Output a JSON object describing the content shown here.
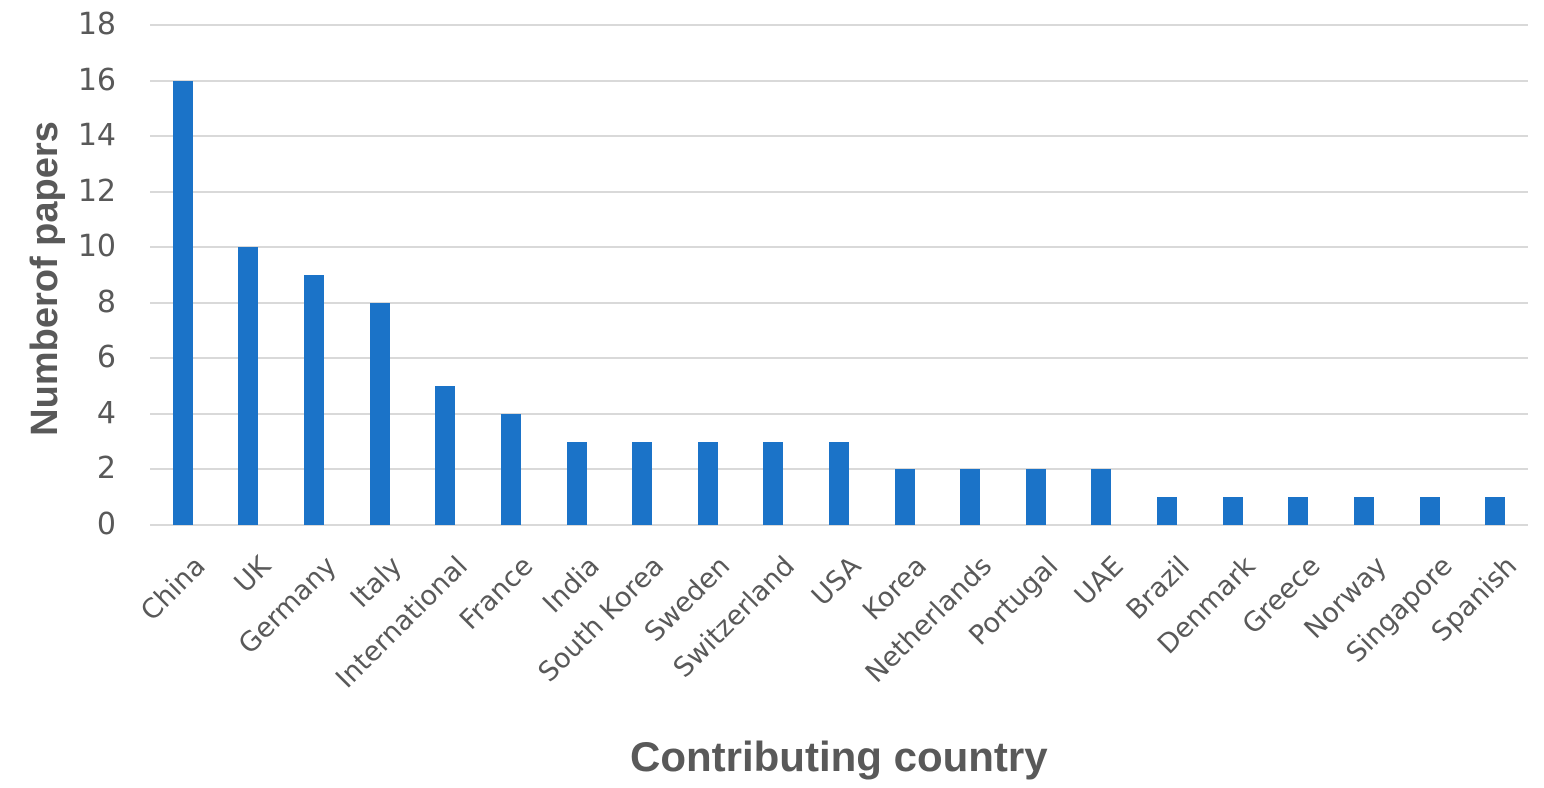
{
  "chart_data": {
    "type": "bar",
    "title": "",
    "xlabel": "Contributing country",
    "ylabel": "Numberof papers",
    "ylim": [
      0,
      18
    ],
    "yticks": [
      0,
      2,
      4,
      6,
      8,
      10,
      12,
      14,
      16,
      18
    ],
    "grid": true,
    "legend": null,
    "bar_color": "#1b73c8",
    "categories": [
      "China",
      "UK",
      "Germany",
      "Italy",
      "International",
      "France",
      "India",
      "South Korea",
      "Sweden",
      "Switzerland",
      "USA",
      "Korea",
      "Netherlands",
      "Portugal",
      "UAE",
      "Brazil",
      "Denmark",
      "Greece",
      "Norway",
      "Singapore",
      "Spanish"
    ],
    "values": [
      16,
      10,
      9,
      8,
      5,
      4,
      3,
      3,
      3,
      3,
      3,
      2,
      2,
      2,
      2,
      1,
      1,
      1,
      1,
      1,
      1
    ]
  }
}
